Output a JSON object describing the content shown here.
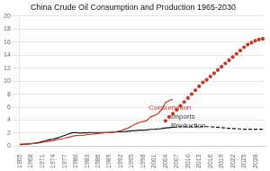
{
  "chart_data": {
    "type": "line",
    "title": "China Crude Oil Consumption and Production 1965-2030",
    "series": [
      {
        "x": [
          1965,
          1966,
          1967,
          1968,
          1969,
          1970,
          1971,
          1972,
          1973,
          1974,
          1975,
          1976,
          1977,
          1978,
          1979,
          1980,
          1981,
          1982,
          1983,
          1984,
          1985,
          1986,
          1987,
          1988,
          1989,
          1990,
          1991,
          1992,
          1993,
          1994,
          1995,
          1996,
          1997,
          1998,
          1999,
          2000,
          2001,
          2002,
          2003,
          2004,
          2005,
          2006
        ],
        "values": [
          0.3,
          0.33,
          0.36,
          0.38,
          0.42,
          0.5,
          0.6,
          0.68,
          0.78,
          0.88,
          1.0,
          1.1,
          1.2,
          1.35,
          1.5,
          1.62,
          1.65,
          1.68,
          1.75,
          1.82,
          1.88,
          1.95,
          2.02,
          2.08,
          2.12,
          2.18,
          2.25,
          2.38,
          2.6,
          2.78,
          3.1,
          3.4,
          3.65,
          3.78,
          3.95,
          4.5,
          4.7,
          5.0,
          5.6,
          6.7,
          7.0,
          7.2
        ],
        "color": "#c0392b",
        "line_style": "solid",
        "marker": "none"
      },
      {
        "x": [
          1965,
          1966,
          1967,
          1968,
          1969,
          1970,
          1971,
          1972,
          1973,
          1974,
          1975,
          1976,
          1977,
          1978,
          1979,
          1980,
          1981,
          1982,
          1983,
          1984,
          1985,
          1986,
          1987,
          1988,
          1989,
          1990,
          1991,
          1992,
          1993,
          1994,
          1995,
          1996,
          1997,
          1998,
          1999,
          2000,
          2001,
          2002,
          2003,
          2004,
          2005,
          2006
        ],
        "values": [
          0.25,
          0.28,
          0.32,
          0.38,
          0.45,
          0.55,
          0.7,
          0.85,
          1.0,
          1.1,
          1.25,
          1.45,
          1.65,
          1.85,
          2.05,
          2.1,
          2.02,
          2.05,
          2.05,
          2.1,
          2.1,
          2.1,
          2.1,
          2.1,
          2.1,
          2.15,
          2.2,
          2.22,
          2.25,
          2.3,
          2.35,
          2.4,
          2.45,
          2.45,
          2.5,
          2.58,
          2.6,
          2.65,
          2.7,
          2.8,
          2.85,
          2.9
        ],
        "color": "#111111",
        "line_style": "solid",
        "marker": "none"
      },
      {
        "x": [
          2004,
          2005,
          2006,
          2007,
          2008,
          2009,
          2010,
          2011,
          2012,
          2013,
          2014,
          2015,
          2016,
          2017,
          2018,
          2019,
          2020,
          2021,
          2022,
          2023,
          2024,
          2025,
          2026,
          2027,
          2028,
          2029,
          2030
        ],
        "values": [
          3.9,
          4.5,
          5.0,
          5.6,
          6.2,
          6.8,
          7.4,
          8.0,
          8.6,
          9.2,
          9.8,
          10.2,
          10.7,
          11.2,
          11.7,
          12.2,
          12.7,
          13.2,
          13.7,
          14.2,
          14.7,
          15.2,
          15.6,
          15.9,
          16.2,
          16.4,
          16.5
        ],
        "color": "#c0392b",
        "line_style": "none",
        "marker": "dot"
      },
      {
        "x": [
          2006,
          2007,
          2008,
          2009,
          2010,
          2011,
          2012,
          2013,
          2014,
          2015,
          2016,
          2017,
          2018,
          2019,
          2020,
          2021,
          2022,
          2023,
          2024,
          2025,
          2026,
          2027,
          2028,
          2029,
          2030
        ],
        "values": [
          2.9,
          2.95,
          3.0,
          3.0,
          3.0,
          3.0,
          3.0,
          3.0,
          3.0,
          3.0,
          3.0,
          2.95,
          2.9,
          2.85,
          2.8,
          2.75,
          2.7,
          2.7,
          2.65,
          2.6,
          2.6,
          2.6,
          2.6,
          2.6,
          2.6
        ],
        "color": "#111111",
        "line_style": "dashed",
        "marker": "none"
      }
    ],
    "annotations": [
      {
        "text": "Consumption",
        "x": 1999.5,
        "y": 5.3,
        "color": "#c0392b"
      },
      {
        "text": "Imports",
        "x": 2005.5,
        "y": 4.0,
        "color": "#333333"
      },
      {
        "text": "Production",
        "x": 2005.5,
        "y": 2.55,
        "color": "#333333"
      }
    ],
    "xlim": [
      1965,
      2030.5
    ],
    "xticks": [
      1965,
      1968,
      1971,
      1974,
      1977,
      1980,
      1983,
      1986,
      1989,
      1992,
      1995,
      1998,
      2001,
      2004,
      2007,
      2010,
      2013,
      2016,
      2019,
      2022,
      2025,
      2028
    ],
    "ylim": [
      0,
      20
    ],
    "yticks": [
      0,
      2,
      4,
      6,
      8,
      10,
      12,
      14,
      16,
      18,
      20
    ],
    "grid": "y"
  }
}
